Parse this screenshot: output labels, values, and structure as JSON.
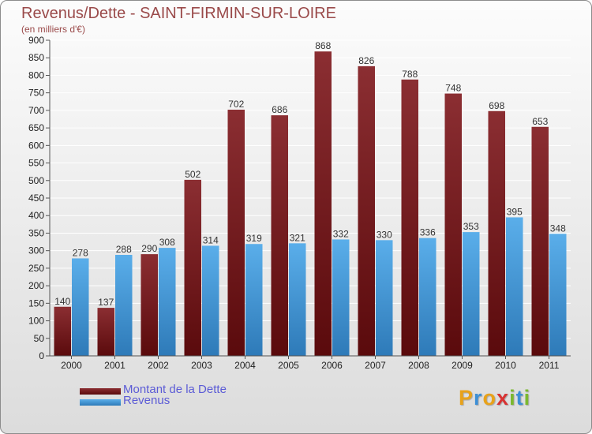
{
  "title": "Revenus/Dette - SAINT-FIRMIN-SUR-LOIRE",
  "subtitle": "(en milliers d'€)",
  "colors": {
    "dette_light": "#8b2e32",
    "dette_dark": "#5a0a0c",
    "revenus_light": "#5aaeea",
    "revenus_dark": "#2e7ab8",
    "grid": "#ffffff"
  },
  "legend": {
    "dette_label": "Montant de la Dette",
    "revenus_label": "Revenus"
  },
  "logo": {
    "text": "Proxiti",
    "letters": [
      "P",
      "r",
      "o",
      "x",
      "i",
      "t",
      "i"
    ],
    "letter_colors": [
      "#e8a21a",
      "#3d8fd6",
      "#e8a21a",
      "#d83232",
      "#7cb82f",
      "#3d8fd6",
      "#7cb82f"
    ]
  },
  "chart_data": {
    "type": "bar",
    "title": "Revenus/Dette - SAINT-FIRMIN-SUR-LOIRE",
    "subtitle": "(en milliers d'€)",
    "categories": [
      "2000",
      "2001",
      "2002",
      "2003",
      "2004",
      "2005",
      "2006",
      "2007",
      "2008",
      "2009",
      "2010",
      "2011"
    ],
    "series": [
      {
        "name": "Montant de la Dette",
        "values": [
          140,
          137,
          290,
          502,
          702,
          686,
          868,
          826,
          788,
          748,
          698,
          653
        ]
      },
      {
        "name": "Revenus",
        "values": [
          278,
          288,
          308,
          314,
          319,
          321,
          332,
          330,
          336,
          353,
          395,
          348
        ]
      }
    ],
    "ylim": [
      0,
      900
    ],
    "yticks": [
      0,
      50,
      100,
      150,
      200,
      250,
      300,
      350,
      400,
      450,
      500,
      550,
      600,
      650,
      700,
      750,
      800,
      850,
      900
    ],
    "grid": true,
    "legend_position": "bottom-left"
  }
}
